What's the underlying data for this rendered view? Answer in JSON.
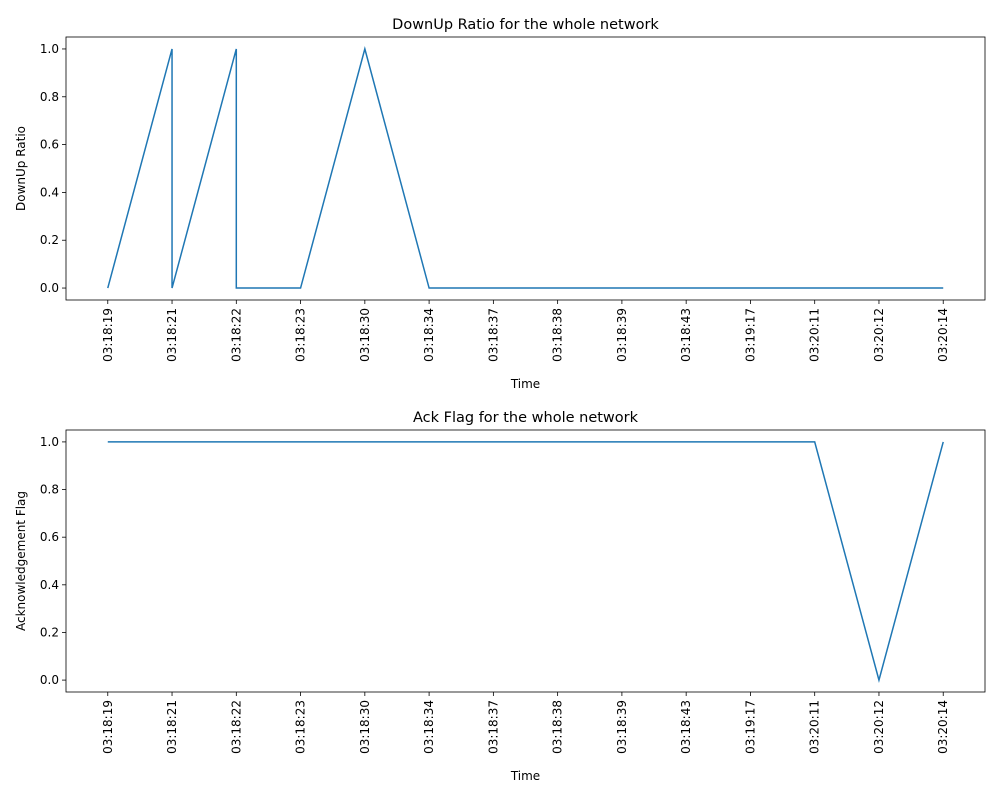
{
  "chart_data": [
    {
      "type": "line",
      "title": "DownUp Ratio for the whole network",
      "xlabel": "Time",
      "ylabel": "DownUp Ratio",
      "categories": [
        "03:18:19",
        "03:18:21",
        "03:18:22",
        "03:18:23",
        "03:18:30",
        "03:18:34",
        "03:18:37",
        "03:18:38",
        "03:18:39",
        "03:18:43",
        "03:19:17",
        "03:20:11",
        "03:20:12",
        "03:20:14"
      ],
      "x": [
        "03:18:19",
        "03:18:21",
        "03:18:21",
        "03:18:22",
        "03:18:22",
        "03:18:23",
        "03:18:30",
        "03:18:34",
        "03:18:37",
        "03:18:38",
        "03:18:39",
        "03:18:43",
        "03:19:17",
        "03:20:11",
        "03:20:12",
        "03:20:14"
      ],
      "values": [
        0,
        1,
        0,
        1,
        0,
        0,
        1,
        0,
        0,
        0,
        0,
        0,
        0,
        0,
        0,
        0
      ],
      "color": "#1f77b4",
      "xlim": [
        -0.65,
        13.65
      ],
      "ylim": [
        -0.05,
        1.05
      ],
      "yticks": [
        {
          "value": 0,
          "label": "0.0"
        },
        {
          "value": 0.2,
          "label": "0.2"
        },
        {
          "value": 0.4,
          "label": "0.4"
        },
        {
          "value": 0.6,
          "label": "0.6"
        },
        {
          "value": 0.8,
          "label": "0.8"
        },
        {
          "value": 1,
          "label": "1.0"
        }
      ]
    },
    {
      "type": "line",
      "title": "Ack Flag for the whole network",
      "xlabel": "Time",
      "ylabel": "Acknowledgement Flag",
      "categories": [
        "03:18:19",
        "03:18:21",
        "03:18:22",
        "03:18:23",
        "03:18:30",
        "03:18:34",
        "03:18:37",
        "03:18:38",
        "03:18:39",
        "03:18:43",
        "03:19:17",
        "03:20:11",
        "03:20:12",
        "03:20:14"
      ],
      "x": [
        "03:18:19",
        "03:18:21",
        "03:18:21",
        "03:18:22",
        "03:18:22",
        "03:18:23",
        "03:18:30",
        "03:18:34",
        "03:18:37",
        "03:18:38",
        "03:18:39",
        "03:18:43",
        "03:19:17",
        "03:20:11",
        "03:20:12",
        "03:20:14"
      ],
      "values": [
        1,
        1,
        1,
        1,
        1,
        1,
        1,
        1,
        1,
        1,
        1,
        1,
        1,
        1,
        0,
        1
      ],
      "color": "#1f77b4",
      "xlim": [
        -0.65,
        13.65
      ],
      "ylim": [
        -0.05,
        1.05
      ],
      "yticks": [
        {
          "value": 0,
          "label": "0.0"
        },
        {
          "value": 0.2,
          "label": "0.2"
        },
        {
          "value": 0.4,
          "label": "0.4"
        },
        {
          "value": 0.6,
          "label": "0.6"
        },
        {
          "value": 0.8,
          "label": "0.8"
        },
        {
          "value": 1,
          "label": "1.0"
        }
      ]
    }
  ]
}
